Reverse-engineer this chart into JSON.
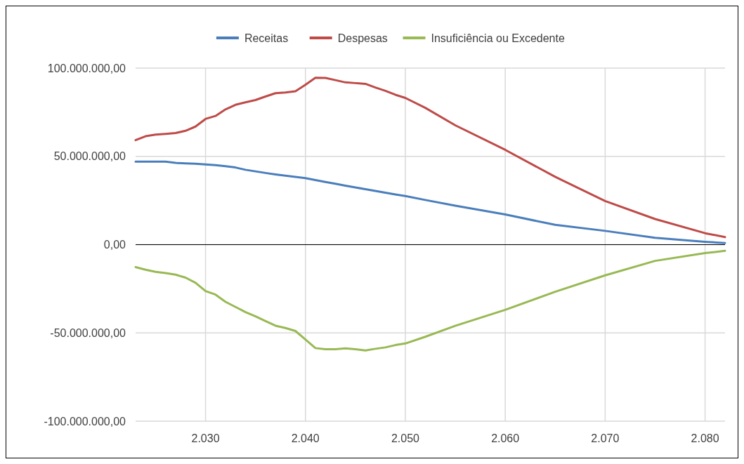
{
  "chart_data": {
    "type": "line",
    "legend": "top",
    "grid": true,
    "x": [
      2023,
      2024,
      2025,
      2026,
      2027,
      2028,
      2029,
      2030,
      2031,
      2032,
      2033,
      2034,
      2035,
      2036,
      2037,
      2038,
      2039,
      2040,
      2041,
      2042,
      2043,
      2044,
      2045,
      2046,
      2047,
      2048,
      2049,
      2050,
      2052,
      2055,
      2060,
      2065,
      2070,
      2075,
      2080,
      2082
    ],
    "xlim": [
      2023,
      2082
    ],
    "xticks": [
      {
        "value": 2030,
        "label": "2.030"
      },
      {
        "value": 2040,
        "label": "2.040"
      },
      {
        "value": 2050,
        "label": "2.050"
      },
      {
        "value": 2060,
        "label": "2.060"
      },
      {
        "value": 2070,
        "label": "2.070"
      },
      {
        "value": 2080,
        "label": "2.080"
      }
    ],
    "ylim": [
      -100000000,
      100000000
    ],
    "yticks": [
      {
        "value": -100000000,
        "label": "-100.000.000,00"
      },
      {
        "value": -50000000,
        "label": "-50.000.000,00"
      },
      {
        "value": 0,
        "label": "0,00"
      },
      {
        "value": 50000000,
        "label": "50.000.000,00"
      },
      {
        "value": 100000000,
        "label": "100.000.000,00"
      }
    ],
    "series": [
      {
        "name": "Receitas",
        "color": "#4a7ebb",
        "values": [
          47000000,
          47000000,
          47000000,
          47000000,
          46300000,
          46000000,
          45800000,
          45400000,
          45000000,
          44400000,
          43700000,
          42400000,
          41500000,
          40600000,
          39800000,
          39100000,
          38400000,
          37700000,
          36600000,
          35500000,
          34500000,
          33400000,
          32400000,
          31400000,
          30400000,
          29400000,
          28400000,
          27500000,
          25300000,
          22100000,
          17100000,
          11200000,
          7800000,
          3900000,
          1600000,
          900000
        ]
      },
      {
        "name": "Despesas",
        "color": "#be4b48",
        "values": [
          59200000,
          61400000,
          62300000,
          62700000,
          63200000,
          64500000,
          66900000,
          71200000,
          72900000,
          76600000,
          79200000,
          80600000,
          81900000,
          83900000,
          85800000,
          86200000,
          86900000,
          90600000,
          94500000,
          94400000,
          93200000,
          91900000,
          91500000,
          91100000,
          89000000,
          87100000,
          84900000,
          83100000,
          77500000,
          67600000,
          53700000,
          38400000,
          24700000,
          14500000,
          6500000,
          4300000
        ]
      },
      {
        "name": "Insuficiência ou Excedente",
        "color": "#98b954",
        "values": [
          -12700000,
          -14200000,
          -15400000,
          -16100000,
          -17000000,
          -18700000,
          -21600000,
          -26300000,
          -28300000,
          -32400000,
          -35300000,
          -38200000,
          -40600000,
          -43300000,
          -45900000,
          -47200000,
          -48900000,
          -53700000,
          -58600000,
          -59200000,
          -59200000,
          -58700000,
          -59200000,
          -59900000,
          -59000000,
          -58200000,
          -56900000,
          -56000000,
          -52200000,
          -46000000,
          -36900000,
          -26700000,
          -17400000,
          -9200000,
          -4800000,
          -3500000
        ]
      }
    ]
  }
}
